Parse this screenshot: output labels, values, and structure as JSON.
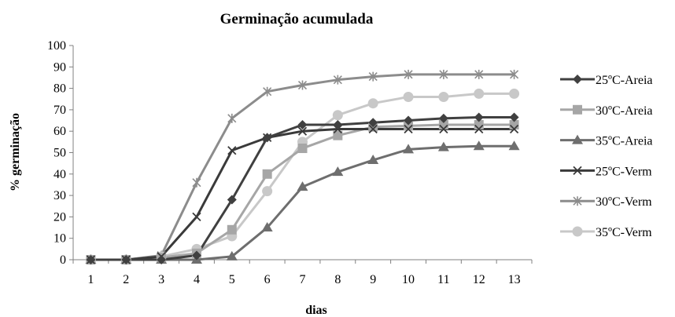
{
  "chart_data": {
    "type": "line",
    "title": "Germinação acumulada",
    "xlabel": "dias",
    "ylabel": "% germinação",
    "x": [
      1,
      2,
      3,
      4,
      5,
      6,
      7,
      8,
      9,
      10,
      11,
      12,
      13
    ],
    "ylim": [
      0,
      100
    ],
    "yticks": [
      0,
      10,
      20,
      30,
      40,
      50,
      60,
      70,
      80,
      90,
      100
    ],
    "grid": false,
    "legend_position": "right",
    "series": [
      {
        "name": "25ºC-Areia",
        "marker": "diamond",
        "color": "#404040",
        "values": [
          0,
          0,
          0,
          2,
          28,
          57,
          63,
          63,
          64,
          65,
          66,
          66.5,
          66.5
        ]
      },
      {
        "name": "30ºC-Areia",
        "marker": "square",
        "color": "#a6a6a6",
        "values": [
          0,
          0,
          1,
          3,
          14,
          40,
          52,
          58,
          62,
          62.5,
          63,
          63,
          63
        ]
      },
      {
        "name": "35ºC-Areia",
        "marker": "triangle",
        "color": "#6e6e6e",
        "values": [
          0,
          0,
          0,
          0,
          1.5,
          15,
          34,
          41,
          46.5,
          51.5,
          52.5,
          53,
          53
        ]
      },
      {
        "name": "25ºC-Verm",
        "marker": "x",
        "color": "#3a3a3a",
        "values": [
          0,
          0,
          1.5,
          20,
          51,
          57,
          60,
          61,
          61,
          61,
          61,
          61,
          61
        ]
      },
      {
        "name": "30ºC-Verm",
        "marker": "star",
        "color": "#8c8c8c",
        "values": [
          0,
          0,
          2,
          36,
          66,
          78.5,
          81.5,
          84,
          85.5,
          86.5,
          86.5,
          86.5,
          86.5
        ]
      },
      {
        "name": "35ºC-Verm",
        "marker": "circle",
        "color": "#c8c8c8",
        "values": [
          0,
          0,
          1.5,
          5,
          11,
          32,
          55,
          67.5,
          73,
          76,
          76,
          77.5,
          77.5
        ]
      }
    ]
  }
}
